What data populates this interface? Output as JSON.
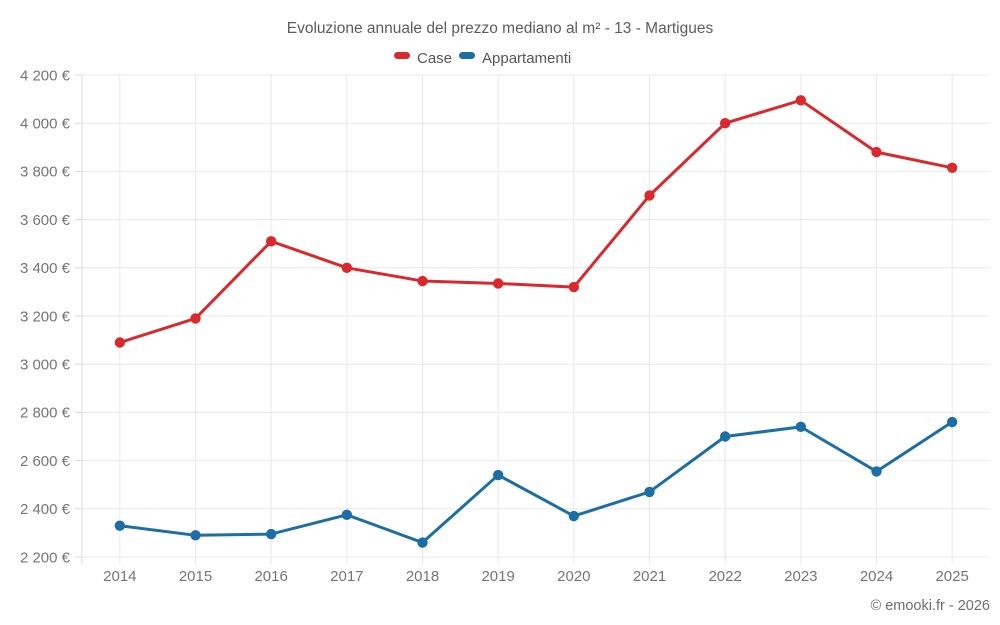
{
  "title": "Evoluzione annuale del prezzo mediano al m² - 13 - Martigues",
  "footer": "© emooki.fr - 2026",
  "colors": {
    "case_red": "#d9292f",
    "appartamenti_blue": "#1c6ea4",
    "grid": "#e8e8e8",
    "text_gray": "#757575"
  },
  "chart_data": {
    "type": "line",
    "title": "Evoluzione annuale del prezzo mediano al m² - 13 - Martigues",
    "categories": [
      "2014",
      "2015",
      "2016",
      "2017",
      "2018",
      "2019",
      "2020",
      "2021",
      "2022",
      "2023",
      "2024",
      "2025"
    ],
    "series": [
      {
        "name": "Case",
        "color": "#d9292f",
        "values": [
          3090,
          3190,
          3510,
          3400,
          3345,
          3335,
          3320,
          3700,
          4000,
          4095,
          3880,
          3815
        ]
      },
      {
        "name": "Appartamenti",
        "color": "#1c6ea4",
        "values": [
          2330,
          2290,
          2295,
          2375,
          2260,
          2540,
          2370,
          2470,
          2700,
          2740,
          2555,
          2760
        ]
      }
    ],
    "xlabel": "",
    "ylabel": "",
    "ylim": [
      2200,
      4200
    ],
    "ytick_step": 200,
    "ytick_labels": [
      "2 200 €",
      "2 400 €",
      "2 600 €",
      "2 800 €",
      "3 000 €",
      "3 200 €",
      "3 400 €",
      "3 600 €",
      "3 800 €",
      "4 000 €",
      "4 200 €"
    ],
    "grid": true,
    "legend_position": "top",
    "marker": "circle",
    "currency_suffix": "€"
  }
}
